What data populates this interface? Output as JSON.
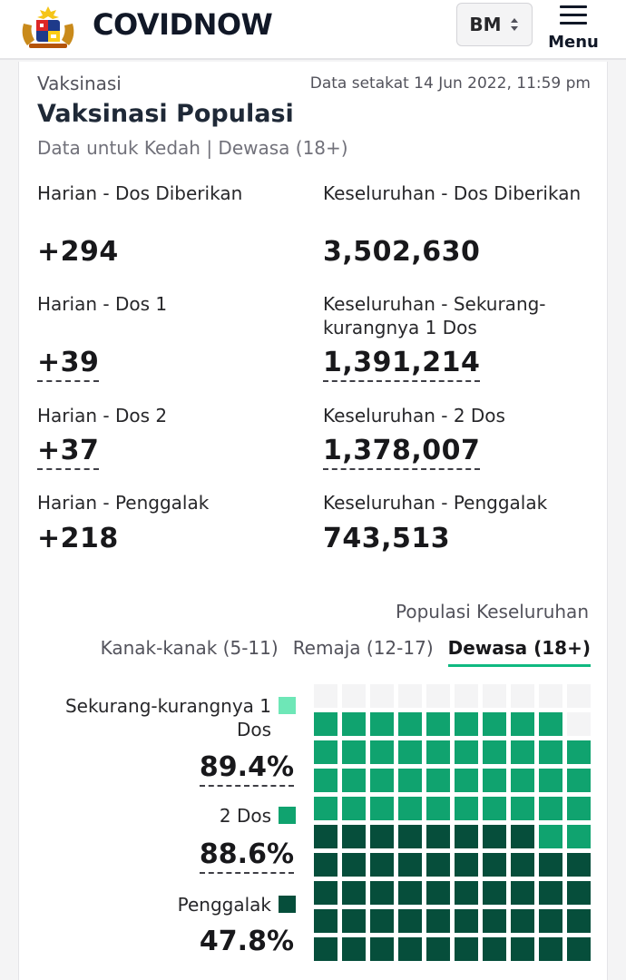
{
  "header": {
    "brand": "COVIDNOW",
    "language": "BM",
    "menu_label": "Menu",
    "colors": {
      "background": "#ffffff",
      "border": "#e4e4e7"
    }
  },
  "section": {
    "label": "Vaksinasi",
    "updated": "Data setakat 14 Jun 2022, 11:59 pm",
    "title": "Vaksinasi Populasi",
    "subtitle": "Data untuk Kedah | Dewasa (18+)"
  },
  "stats": {
    "daily_doses": {
      "label": "Harian - Dos Diberikan",
      "value": "+294"
    },
    "total_doses": {
      "label": "Keseluruhan - Dos Diberikan",
      "value": "3,502,630"
    },
    "daily_dose1": {
      "label": "Harian - Dos 1",
      "value": "+39"
    },
    "total_dose1": {
      "label": "Keseluruhan - Sekurang-kurangnya 1 Dos",
      "value": "1,391,214"
    },
    "daily_dose2": {
      "label": "Harian - Dos 2",
      "value": "+37"
    },
    "total_dose2": {
      "label": "Keseluruhan - 2 Dos",
      "value": "1,378,007"
    },
    "daily_booster": {
      "label": "Harian - Penggalak",
      "value": "+218"
    },
    "total_booster": {
      "label": "Keseluruhan - Penggalak",
      "value": "743,513"
    }
  },
  "population": {
    "title": "Populasi Keseluruhan",
    "tabs": [
      {
        "label": "Kanak-kanak (5-11)",
        "active": false
      },
      {
        "label": "Remaja (12-17)",
        "active": false
      },
      {
        "label": "Dewasa (18+)",
        "active": true
      }
    ],
    "legend": [
      {
        "label": "Sekurang-kurangnya 1 Dos",
        "percent": "89.4%",
        "color": "#6ee7b7"
      },
      {
        "label": "2 Dos",
        "percent": "88.6%",
        "color": "#10a36f"
      },
      {
        "label": "Penggalak",
        "percent": "47.8%",
        "color": "#064e3b"
      }
    ],
    "waffle": {
      "at_least_one_dose": 89.4,
      "two_doses": 88.6,
      "booster": 47.8,
      "empty_color": "#f4f4f5",
      "accent": "#10b981"
    }
  }
}
